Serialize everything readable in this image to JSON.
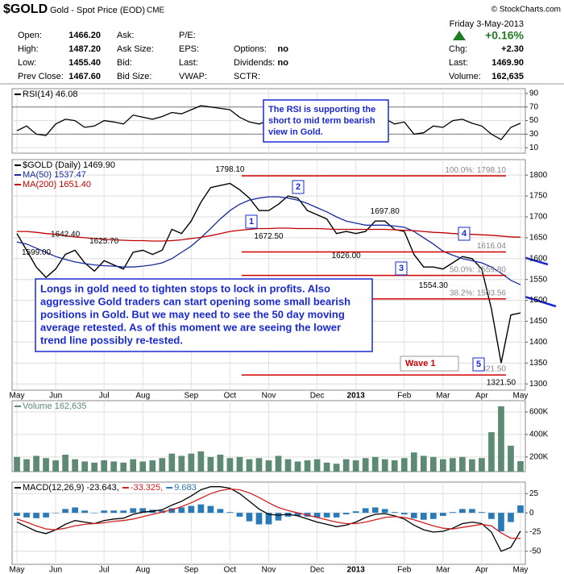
{
  "header": {
    "symbol": "$GOLD",
    "name": "Gold - Spot Price (EOD)",
    "exchange": "CME",
    "copyright": "© StockCharts.com",
    "date": "Friday  3-May-2013",
    "change_pct": "+0.16%",
    "rows": [
      [
        {
          "label": "Open:",
          "value": "1466.20"
        },
        {
          "label": "Ask:"
        },
        {
          "label": "P/E:"
        }
      ],
      [
        {
          "label": "High:",
          "value": "1487.20"
        },
        {
          "label": "Ask Size:"
        },
        {
          "label": "EPS:"
        },
        {
          "label": "Options:",
          "value": "no"
        }
      ],
      [
        {
          "label": "Low:",
          "value": "1455.40"
        },
        {
          "label": "Bid:"
        },
        {
          "label": "Last:"
        },
        {
          "label": "Dividends:",
          "value": "no"
        }
      ],
      [
        {
          "label": "Prev Close:",
          "value": "1467.60"
        },
        {
          "label": "Bid Size:"
        },
        {
          "label": "VWAP:"
        },
        {
          "label": "SCTR:"
        }
      ]
    ],
    "quote": [
      {
        "label": "Chg:",
        "value": "+2.30"
      },
      {
        "label": "Last:",
        "value": "1469.90"
      },
      {
        "label": "Volume:",
        "value": "162,635"
      }
    ]
  },
  "chart_data": [
    {
      "type": "line",
      "ylim": [
        2,
        97
      ],
      "yticks": [
        10,
        30,
        50,
        70,
        90
      ],
      "grid": true,
      "note": [
        "The RSI is supporting the",
        "short to mid term bearish",
        "view in Gold."
      ],
      "series": [
        {
          "name": "RSI(14) 46.08",
          "color": "#000000",
          "values": [
            35,
            42,
            30,
            28,
            45,
            52,
            50,
            40,
            42,
            50,
            48,
            45,
            58,
            55,
            52,
            56,
            62,
            60,
            66,
            72,
            70,
            68,
            66,
            55,
            48,
            45,
            50,
            56,
            55,
            48,
            45,
            45,
            40,
            38,
            45,
            47,
            52,
            55,
            53,
            45,
            48,
            30,
            32,
            42,
            40,
            50,
            52,
            46,
            42,
            30,
            22,
            40,
            46.08
          ]
        }
      ]
    },
    {
      "type": "line",
      "ylim": [
        1285,
        1837
      ],
      "yticks": [
        1300,
        1350,
        1400,
        1450,
        1500,
        1550,
        1600,
        1650,
        1700,
        1750,
        1800
      ],
      "grid": true,
      "categories": [
        "May",
        null,
        null,
        null,
        "Jun",
        null,
        null,
        null,
        null,
        "Jul",
        null,
        null,
        null,
        "Aug",
        null,
        null,
        null,
        null,
        "Sep",
        null,
        null,
        null,
        "Oct",
        null,
        null,
        null,
        "Nov",
        null,
        null,
        null,
        null,
        "Dec",
        null,
        null,
        null,
        "2013",
        null,
        null,
        null,
        null,
        "Feb",
        null,
        null,
        null,
        "Mar",
        null,
        null,
        null,
        "Apr",
        null,
        null,
        null,
        "May"
      ],
      "series": [
        {
          "name": "$GOLD (Daily) 1469.90",
          "color": "#000000",
          "values": [
            1660,
            1620,
            1580,
            1555,
            1575,
            1610,
            1620,
            1590,
            1570,
            1595,
            1585,
            1575,
            1615,
            1620,
            1610,
            1620,
            1670,
            1660,
            1690,
            1735,
            1770,
            1775,
            1780,
            1765,
            1745,
            1715,
            1715,
            1730,
            1750,
            1745,
            1715,
            1705,
            1695,
            1660,
            1665,
            1660,
            1665,
            1690,
            1690,
            1670,
            1665,
            1610,
            1580,
            1580,
            1575,
            1590,
            1605,
            1600,
            1575,
            1480,
            1350,
            1465,
            1469.9
          ]
        },
        {
          "name": "MA(50) 1537.47",
          "color": "#1a2a9c",
          "values": [
            1640,
            1635,
            1625,
            1615,
            1605,
            1598,
            1592,
            1588,
            1585,
            1583,
            1582,
            1580,
            1580,
            1582,
            1585,
            1590,
            1600,
            1615,
            1630,
            1650,
            1672,
            1695,
            1715,
            1730,
            1740,
            1745,
            1748,
            1748,
            1745,
            1740,
            1732,
            1722,
            1712,
            1700,
            1690,
            1685,
            1680,
            1680,
            1680,
            1678,
            1675,
            1665,
            1650,
            1635,
            1618,
            1608,
            1600,
            1595,
            1590,
            1580,
            1565,
            1548,
            1537.47
          ]
        },
        {
          "name": "MA(200) 1651.40",
          "color": "#c00000",
          "values": [
            1665,
            1665,
            1663,
            1660,
            1658,
            1655,
            1652,
            1650,
            1648,
            1646,
            1645,
            1644,
            1643,
            1643,
            1642,
            1642,
            1643,
            1645,
            1648,
            1651,
            1655,
            1660,
            1665,
            1668,
            1670,
            1672,
            1672,
            1673,
            1673,
            1672,
            1672,
            1672,
            1671,
            1670,
            1670,
            1670,
            1670,
            1670,
            1670,
            1669,
            1668,
            1667,
            1665,
            1663,
            1662,
            1660,
            1659,
            1658,
            1657,
            1656,
            1654,
            1652,
            1651.4
          ]
        }
      ],
      "annotations": [
        {
          "value": 1798.1,
          "label": "1798.10"
        },
        {
          "value": 1642.4,
          "label": "1642.40"
        },
        {
          "value": 1599,
          "label": "1599.00"
        },
        {
          "value": 1625.7,
          "label": "1625.70"
        },
        {
          "value": 1672.5,
          "label": "1672.50"
        },
        {
          "value": 1697.8,
          "label": "1697.80"
        },
        {
          "value": 1626,
          "label": "1626.00"
        },
        {
          "value": 1554.3,
          "label": "1554.30"
        },
        {
          "value": 1321.5,
          "label": "1321.50"
        }
      ],
      "fib_levels": [
        {
          "value": 1798.1,
          "label": "100.0%: 1798.10"
        },
        {
          "value": 1616.04,
          "label": "1616.04"
        },
        {
          "value": 1559.8,
          "label": "50.0%: 1559.80"
        },
        {
          "value": 1503.56,
          "label": "38.2%: 1503.56"
        },
        {
          "value": 1321.5,
          "label": "1321.50"
        }
      ],
      "boxes": [
        "1",
        "2",
        "3",
        "4",
        "5"
      ],
      "wave": "Wave 1",
      "callout": [
        "Longs in gold need to tighten stops to lock in profits.  Also",
        "aggressive Gold traders can start opening some small bearish",
        "positions in Gold.  But we may need to see the 50 day moving",
        "average retested.  As of this moment we are seeing the lower",
        "trend line possibly re-tested."
      ]
    },
    {
      "type": "bar",
      "ylim": [
        70000,
        700000
      ],
      "yticks": [
        {
          "value": 200000,
          "label": "200K"
        },
        {
          "value": 400000,
          "label": "400K"
        },
        {
          "value": 600000,
          "label": "600K"
        }
      ],
      "grid": true,
      "series": [
        {
          "name": "Volume 162,635",
          "color": "#5c8a73",
          "values": [
            200000,
            180000,
            210000,
            190000,
            170000,
            220000,
            180000,
            160000,
            150000,
            170000,
            160000,
            150000,
            180000,
            160000,
            170000,
            190000,
            230000,
            210000,
            230000,
            250000,
            200000,
            220000,
            190000,
            200000,
            180000,
            190000,
            170000,
            210000,
            180000,
            160000,
            170000,
            180000,
            150000,
            140000,
            180000,
            170000,
            190000,
            200000,
            180000,
            170000,
            190000,
            240000,
            210000,
            200000,
            180000,
            190000,
            200000,
            180000,
            190000,
            420000,
            650000,
            300000,
            162635
          ]
        }
      ]
    },
    {
      "type": "line",
      "ylim": [
        -67,
        40
      ],
      "yticks": [
        -50,
        -25,
        0,
        25
      ],
      "grid": true,
      "categories": [
        "May",
        null,
        null,
        null,
        "Jun",
        null,
        null,
        null,
        null,
        "Jul",
        null,
        null,
        null,
        "Aug",
        null,
        null,
        null,
        null,
        "Sep",
        null,
        null,
        null,
        "Oct",
        null,
        null,
        null,
        "Nov",
        null,
        null,
        null,
        null,
        "Dec",
        null,
        null,
        null,
        "2013",
        null,
        null,
        null,
        null,
        "Feb",
        null,
        null,
        null,
        "Mar",
        null,
        null,
        null,
        "Apr",
        null,
        null,
        null,
        "May"
      ],
      "series": [
        {
          "name": "9.683",
          "color": "#2a7ab8",
          "type": "bar",
          "values": [
            -4,
            -6,
            -7,
            -6,
            0,
            5,
            7,
            3,
            0,
            3,
            3,
            3,
            6,
            6,
            4,
            3,
            6,
            7,
            9,
            11,
            9,
            5,
            1,
            -5,
            -11,
            -15,
            -15,
            -10,
            -5,
            -4,
            -5,
            -6,
            -6,
            -6,
            -2,
            2,
            6,
            7,
            5,
            1,
            -2,
            -7,
            -9,
            -8,
            -4,
            1,
            5,
            5,
            1,
            -8,
            -24,
            -12,
            9.683
          ]
        },
        {
          "name": "MACD(12,26,9) -23.643,",
          "color": "#000000",
          "values": [
            -12,
            -18,
            -24,
            -27,
            -22,
            -15,
            -10,
            -12,
            -14,
            -10,
            -8,
            -7,
            -2,
            1,
            2,
            4,
            10,
            15,
            22,
            30,
            34,
            34,
            32,
            25,
            15,
            5,
            -2,
            -3,
            -2,
            -4,
            -8,
            -12,
            -15,
            -18,
            -16,
            -12,
            -6,
            -2,
            -1,
            -4,
            -8,
            -16,
            -22,
            -25,
            -24,
            -20,
            -14,
            -12,
            -14,
            -25,
            -50,
            -45,
            -23.643
          ]
        },
        {
          "name": "-33.325,",
          "color": "#d02020",
          "values": [
            -8,
            -12,
            -17,
            -21,
            -22,
            -20,
            -17,
            -15,
            -14,
            -13,
            -11,
            -10,
            -8,
            -5,
            -2,
            1,
            4,
            8,
            13,
            19,
            25,
            29,
            31,
            30,
            26,
            20,
            13,
            7,
            3,
            0,
            -3,
            -6,
            -9,
            -12,
            -14,
            -14,
            -12,
            -9,
            -6,
            -5,
            -6,
            -9,
            -13,
            -17,
            -20,
            -21,
            -19,
            -17,
            -15,
            -17,
            -26,
            -33,
            -33.325
          ]
        }
      ]
    }
  ]
}
